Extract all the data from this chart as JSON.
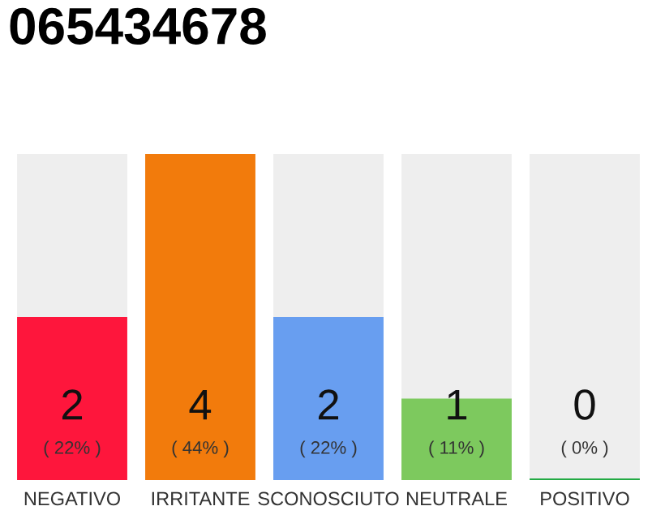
{
  "chart_data": {
    "type": "bar",
    "title": "065434678",
    "categories": [
      "NEGATIVO",
      "IRRITANTE",
      "SCONOSCIUTO",
      "NEUTRALE",
      "POSITIVO"
    ],
    "values": [
      2,
      4,
      2,
      1,
      0
    ],
    "colors": [
      "#fe163c",
      "#f27b0c",
      "#689ef0",
      "#7dc95e",
      "#22aa44"
    ],
    "value_labels": [
      "2\n( 22% )",
      "4\n( 44% )",
      "2\n( 22% )",
      "1\n( 11% )",
      "0\n( 0% )"
    ],
    "grid": false,
    "legend": false
  }
}
